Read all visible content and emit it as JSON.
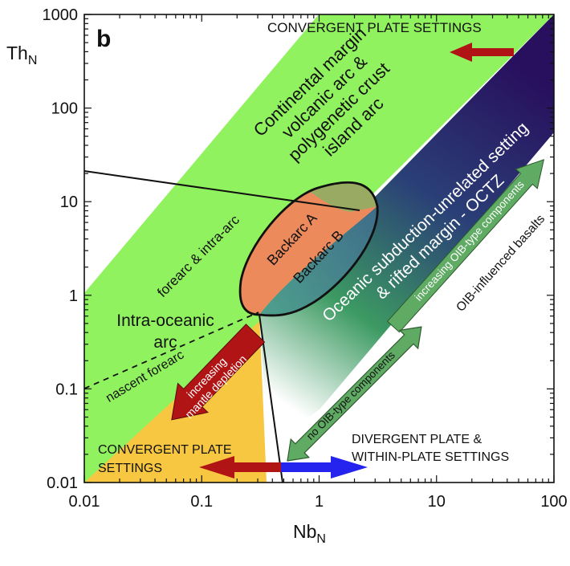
{
  "panel_label": "b",
  "axes": {
    "x_label_main": "Nb",
    "x_label_sub": "N",
    "y_label_main": "Th",
    "y_label_sub": "N",
    "x_scale": "log",
    "y_scale": "log",
    "x_ticks": [
      "0.01",
      "0.1",
      "1",
      "10",
      "100"
    ],
    "y_ticks": [
      "1000",
      "100",
      "10",
      "1",
      "0.1",
      "0.01"
    ]
  },
  "fields": {
    "continental_line1": "Continental margin",
    "continental_line2": "volcanic arc &",
    "continental_line3": "polygenetic crust",
    "continental_line4": "island arc",
    "oceanic_line1": "Oceanic subduction-unrelated setting",
    "oceanic_line2": "& rifted margin - OCTZ",
    "backarc_a": "Backarc A",
    "backarc_b": "Backarc B",
    "forearc": "forearc & intra-arc",
    "intra_line1": "Intra-oceanic",
    "intra_line2": "arc",
    "nascent_forearc": "nascent forearc"
  },
  "arrows": {
    "mantle_line1": "increasing",
    "mantle_line2": "mantle depletion",
    "oib_increasing": "increasing OIB-type components",
    "no_oib": "no OIB-type components",
    "oib_influenced": "OIB-influenced basalts"
  },
  "settings": {
    "convergent_top": "CONVERGENT PLATE SETTINGS",
    "convergent_bottom_line1": "CONVERGENT PLATE",
    "convergent_bottom_line2": "SETTINGS",
    "divergent_line1": "DIVERGENT PLATE &",
    "divergent_line2": "WITHIN-PLATE SETTINGS"
  },
  "colors": {
    "intra_oceanic_fill": "#f8c741",
    "continental_fill": "#90f25e",
    "oceanic_fill_dark": "#28105e",
    "oceanic_fill_light": "#3c9a62",
    "backarc_a_fill": "#ec8a5c",
    "backarc_b_fill": "#3f8f86",
    "red_arrow": "#b11414",
    "blue_arrow": "#2424ee",
    "green_arrow": "#5fab63"
  }
}
